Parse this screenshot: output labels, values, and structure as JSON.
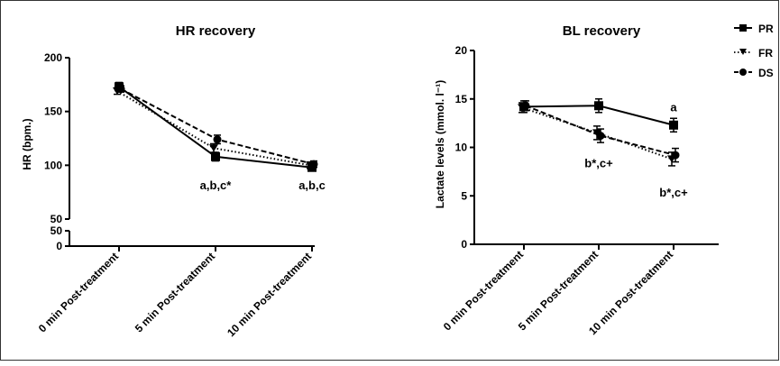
{
  "chart_data": [
    {
      "type": "line",
      "title": "HR recovery",
      "xlabel": "",
      "ylabel": "HR (bpm.)",
      "ylim": [
        50,
        200
      ],
      "y_ticks": [
        "50",
        "100",
        "150",
        "200"
      ],
      "broken_axis": {
        "lower_ticks": [
          "0",
          "50"
        ]
      },
      "categories": [
        "0 min Post-treatment",
        "5 min Post-treatment",
        "10 min Post-treatment"
      ],
      "series": [
        {
          "name": "PR",
          "style": "solid",
          "marker": "square",
          "values": [
            173,
            108,
            98
          ],
          "errors": [
            4,
            4,
            3
          ]
        },
        {
          "name": "FR",
          "style": "dotted",
          "marker": "triangle-down",
          "values": [
            169,
            116,
            100
          ],
          "errors": [
            3,
            4,
            3
          ]
        },
        {
          "name": "DS",
          "style": "dashed",
          "marker": "circle",
          "values": [
            171,
            124,
            101
          ],
          "errors": [
            3,
            4,
            3
          ]
        }
      ],
      "annotations": [
        {
          "text": "a,b,c*",
          "category": 1,
          "y": 82
        },
        {
          "text": "a,b,c",
          "category": 2,
          "y": 82
        }
      ]
    },
    {
      "type": "line",
      "title": "BL recovery",
      "xlabel": "",
      "ylabel": "Lactate levels (mmol. l⁻¹)",
      "ylim": [
        0,
        20
      ],
      "y_ticks": [
        "0",
        "5",
        "10",
        "15",
        "20"
      ],
      "categories": [
        "0 min Post-treatment",
        "5 min Post-treatment",
        "10 min Post-treatment"
      ],
      "series": [
        {
          "name": "PR",
          "style": "solid",
          "marker": "square",
          "values": [
            14.2,
            14.3,
            12.3
          ],
          "errors": [
            0.6,
            0.7,
            0.7
          ]
        },
        {
          "name": "FR",
          "style": "dotted",
          "marker": "triangle-down",
          "values": [
            14.1,
            11.5,
            8.8
          ],
          "errors": [
            0.5,
            0.7,
            0.7
          ]
        },
        {
          "name": "DS",
          "style": "dashed",
          "marker": "circle",
          "values": [
            14.3,
            11.2,
            9.2
          ],
          "errors": [
            0.5,
            0.7,
            0.7
          ]
        }
      ],
      "annotations": [
        {
          "text": "a",
          "category": 2,
          "y": 14.2
        },
        {
          "text": "b*,c+",
          "category": 1,
          "y": 8.4
        },
        {
          "text": "b*,c+",
          "category": 2,
          "y": 5.4
        }
      ]
    }
  ],
  "legend": {
    "placement": "top-right",
    "items": [
      {
        "label": "PR",
        "marker": "square",
        "style": "solid"
      },
      {
        "label": "FR",
        "marker": "triangle-down",
        "style": "dotted"
      },
      {
        "label": "DS",
        "marker": "circle",
        "style": "dashed"
      }
    ]
  }
}
